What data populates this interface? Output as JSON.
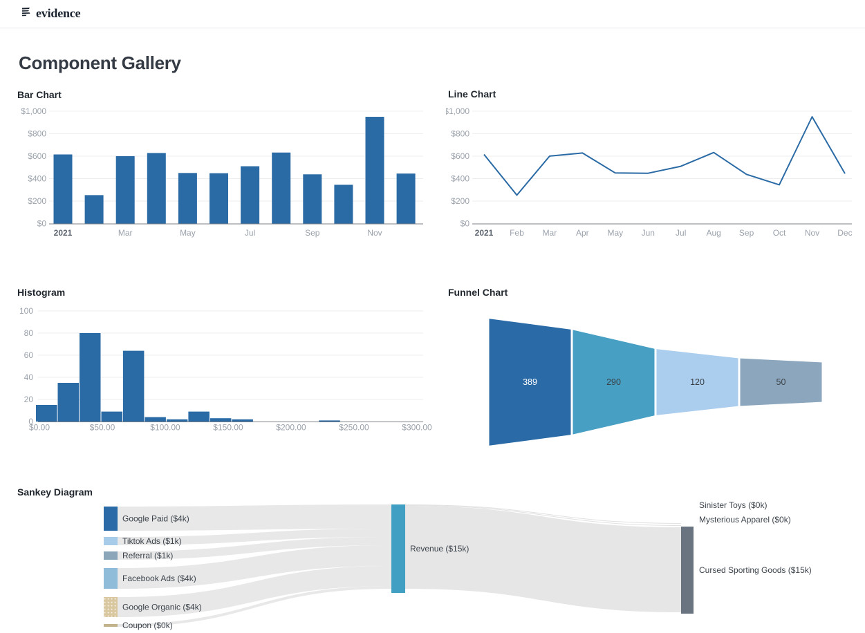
{
  "header": {
    "logo_text": "evidence"
  },
  "page_title": "Component Gallery",
  "chart_data": [
    {
      "id": "bar-chart",
      "type": "bar",
      "title": "Bar Chart",
      "categories": [
        "Jan 2021",
        "Feb",
        "Mar",
        "Apr",
        "May",
        "Jun",
        "Jul",
        "Aug",
        "Sep",
        "Oct",
        "Nov",
        "Dec"
      ],
      "x_tick_labels": [
        "2021",
        "",
        "Mar",
        "",
        "May",
        "",
        "Jul",
        "",
        "Sep",
        "",
        "Nov",
        ""
      ],
      "values": [
        615,
        253,
        600,
        628,
        450,
        448,
        510,
        632,
        438,
        345,
        950,
        445
      ],
      "y_ticks": [
        "$0",
        "$200",
        "$400",
        "$600",
        "$800",
        "$1,000"
      ],
      "ylim": [
        0,
        1000
      ],
      "color": "#2a6aa5",
      "grid": true
    },
    {
      "id": "line-chart",
      "type": "line",
      "title": "Line Chart",
      "categories": [
        "Jan 2021",
        "Feb",
        "Mar",
        "Apr",
        "May",
        "Jun",
        "Jul",
        "Aug",
        "Sep",
        "Oct",
        "Nov",
        "Dec"
      ],
      "x_tick_labels": [
        "2021",
        "Feb",
        "Mar",
        "Apr",
        "May",
        "Jun",
        "Jul",
        "Aug",
        "Sep",
        "Oct",
        "Nov",
        "Dec"
      ],
      "values": [
        615,
        253,
        600,
        628,
        450,
        448,
        510,
        632,
        438,
        345,
        950,
        445
      ],
      "y_ticks": [
        "$0",
        "$200",
        "$400",
        "$600",
        "$800",
        "$1,000"
      ],
      "ylim": [
        0,
        1000
      ],
      "color": "#2a6aa5",
      "grid": true
    },
    {
      "id": "histogram",
      "type": "histogram",
      "title": "Histogram",
      "bin_width_dollars": 17.3,
      "bin_counts": [
        15,
        35,
        80,
        9,
        64,
        4,
        2,
        9,
        3,
        2,
        0,
        0,
        0,
        1
      ],
      "x_ticks": [
        "$0.00",
        "$50.00",
        "$100.00",
        "$150.00",
        "$200.00",
        "$250.00",
        "$300.00"
      ],
      "y_ticks": [
        "0",
        "20",
        "40",
        "60",
        "80",
        "100"
      ],
      "xlim": [
        0,
        305
      ],
      "ylim": [
        0,
        100
      ],
      "color": "#2a6aa5",
      "grid": true
    },
    {
      "id": "funnel-chart",
      "type": "funnel",
      "title": "Funnel Chart",
      "values": [
        389,
        290,
        120,
        50
      ],
      "colors": [
        "#2a6aa6",
        "#47a0c4",
        "#abcdee",
        "#8ca7bd"
      ],
      "label_colors": [
        "#ffffff",
        "#3a4046",
        "#3a4046",
        "#3a4046"
      ]
    },
    {
      "id": "sankey-diagram",
      "type": "sankey",
      "title": "Sankey Diagram",
      "sources": [
        {
          "label": "Google Paid ($4k)",
          "value_k": 4,
          "color": "#2a6aa6"
        },
        {
          "label": "Tiktok Ads ($1k)",
          "value_k": 1,
          "color": "#a7cce9"
        },
        {
          "label": "Referral ($1k)",
          "value_k": 1,
          "color": "#8ba5b9"
        },
        {
          "label": "Facebook Ads ($4k)",
          "value_k": 4,
          "color": "#8fbcd8"
        },
        {
          "label": "Google Organic ($4k)",
          "value_k": 4,
          "color": "#d9c7a0",
          "dotted": true
        },
        {
          "label": "Coupon ($0k)",
          "value_k": 0,
          "color": "#c2b28a"
        }
      ],
      "middle": {
        "label": "Revenue ($15k)",
        "value_k": 15,
        "color": "#419fc4"
      },
      "targets": [
        {
          "label": "Sinister Toys ($0k)",
          "value_k": 0
        },
        {
          "label": "Mysterious Apparel ($0k)",
          "value_k": 0
        },
        {
          "label": "Cursed Sporting Goods ($15k)",
          "value_k": 15,
          "color": "#6a7480"
        }
      ],
      "flow_color": "#e8e8e8"
    }
  ]
}
